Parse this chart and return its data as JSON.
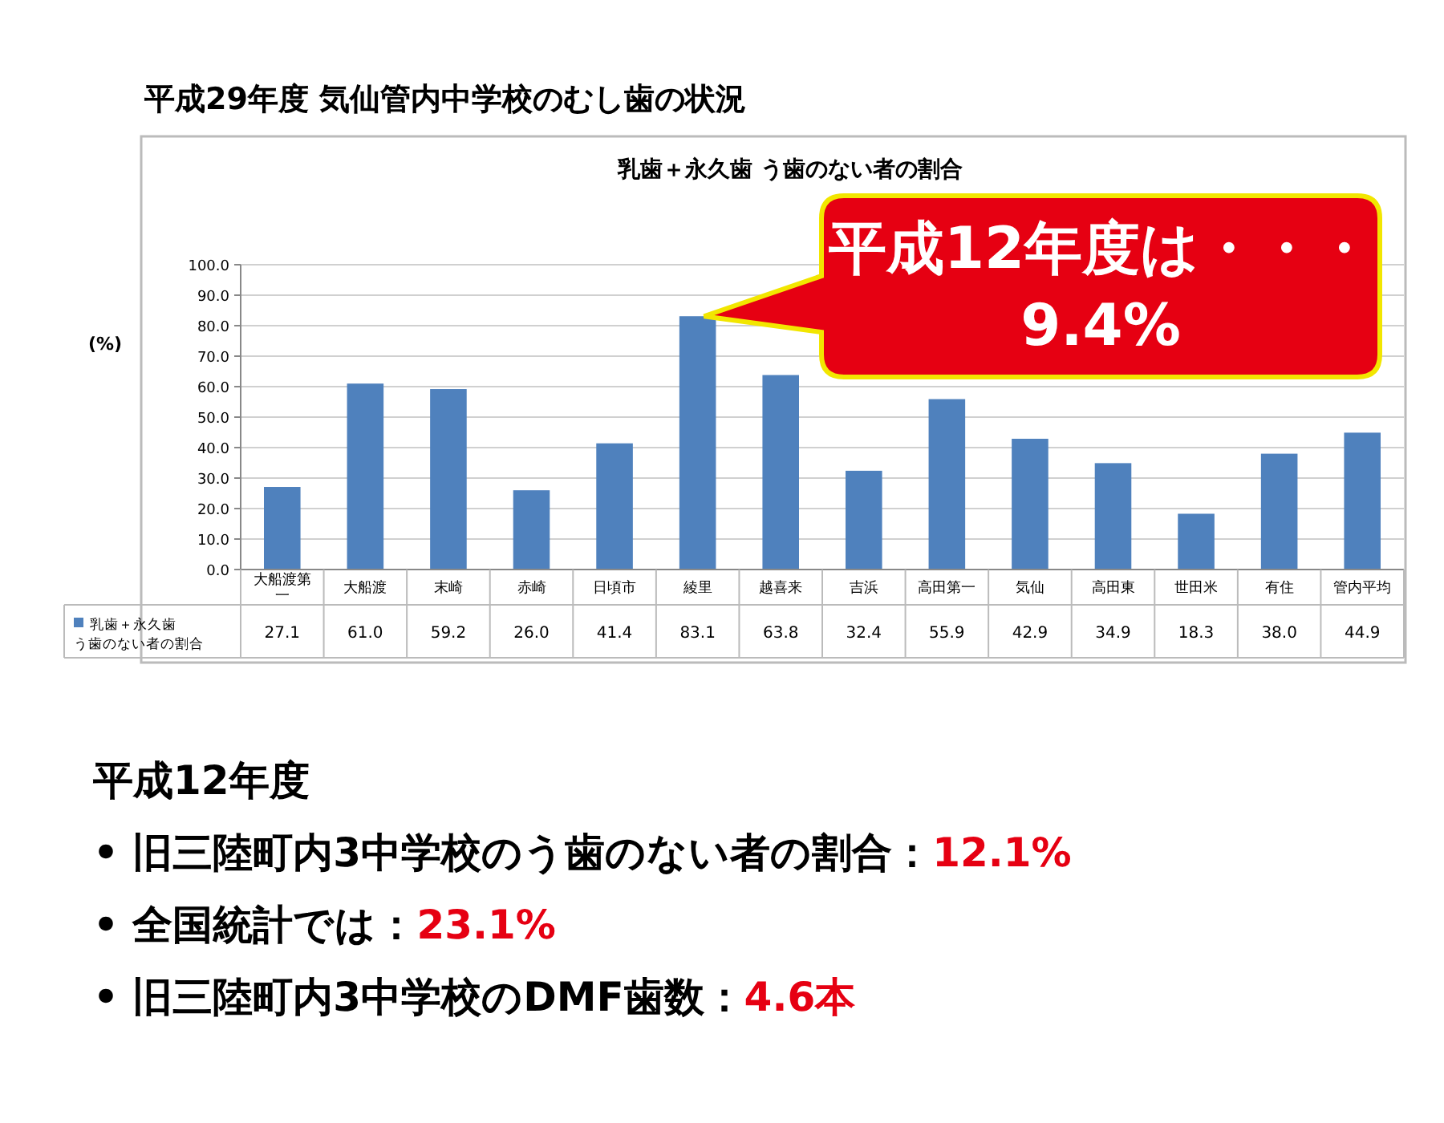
{
  "chart_data": {
    "type": "bar",
    "title": "平成29年度  気仙管内中学校のむし歯の状況",
    "subtitle": "乳歯＋永久歯  う歯のない者の割合",
    "ylabel": "(%)",
    "categories": [
      "大船渡第一",
      "大船渡",
      "末崎",
      "赤崎",
      "日頃市",
      "綾里",
      "越喜来",
      "吉浜",
      "高田第一",
      "気仙",
      "高田東",
      "世田米",
      "有住",
      "管内平均"
    ],
    "series": [
      {
        "name": "乳歯＋永久歯う歯のない者の割合",
        "color": "#4f81bd",
        "values": [
          27.1,
          61.0,
          59.2,
          26.0,
          41.4,
          83.1,
          63.8,
          32.4,
          55.9,
          42.9,
          34.9,
          18.3,
          38.0,
          44.9
        ],
        "value_labels": [
          "27.1",
          "61.0",
          "59.2",
          "26.0",
          "41.4",
          "83.1",
          "63.8",
          "32.4",
          "55.9",
          "42.9",
          "34.9",
          "18.3",
          "38.0",
          "44.9"
        ]
      }
    ],
    "ylim": [
      0,
      100
    ],
    "yticks": [
      {
        "value": 0,
        "label": "0.0"
      },
      {
        "value": 10,
        "label": "10.0"
      },
      {
        "value": 20,
        "label": "20.0"
      },
      {
        "value": 30,
        "label": "30.0"
      },
      {
        "value": 40,
        "label": "40.0"
      },
      {
        "value": 50,
        "label": "50.0"
      },
      {
        "value": 60,
        "label": "60.0"
      },
      {
        "value": 70,
        "label": "70.0"
      },
      {
        "value": 80,
        "label": "80.0"
      },
      {
        "value": 90,
        "label": "90.0"
      },
      {
        "value": 100,
        "label": "100.0"
      }
    ],
    "grid": "y",
    "legend": "bottom left",
    "annotations": [
      {
        "text": "平成12年度は・・・\n9.4%",
        "x": "綾里",
        "y": 83.1
      },
      "平成12年度",
      "• 旧三陸町内3中学校のう歯のない者の割合：12.1%",
      "• 全国統計では：23.1%",
      "• 旧三陸町内3中学校のDMF歯数：4.6本"
    ]
  }
}
